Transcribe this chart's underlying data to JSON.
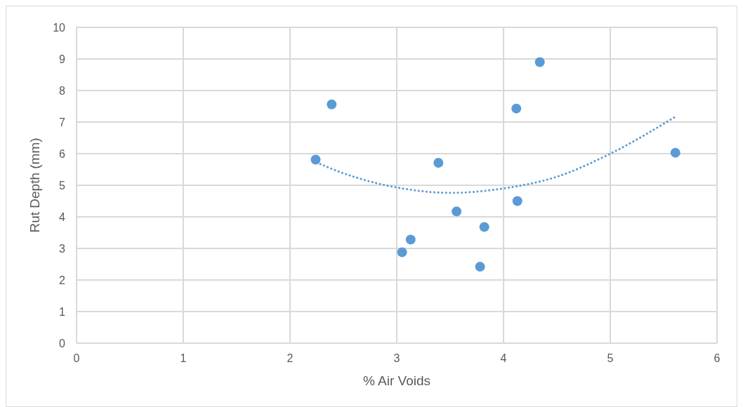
{
  "chart_data": {
    "type": "scatter",
    "xlabel": "% Air Voids",
    "ylabel": "Rut Depth (mm)",
    "xlim": [
      0,
      6
    ],
    "xticks": [
      0,
      1,
      2,
      3,
      4,
      5,
      6
    ],
    "ylim": [
      0,
      10
    ],
    "yticks": [
      0,
      1,
      2,
      3,
      4,
      5,
      6,
      7,
      8,
      9,
      10
    ],
    "grid": true,
    "series": [
      {
        "marker": "circle",
        "color": "#5b9bd5",
        "x": [
          2.24,
          2.39,
          3.39,
          3.56,
          3.82,
          3.13,
          3.05,
          3.78,
          4.13,
          4.12,
          4.34,
          5.61
        ],
        "values": [
          5.81,
          7.56,
          5.71,
          4.17,
          3.68,
          3.28,
          2.88,
          2.42,
          4.5,
          7.43,
          8.9,
          6.03
        ]
      },
      {
        "type": "line",
        "marker": "none",
        "color": "#5b9bd5",
        "line_style": "dotted",
        "x": [
          2.25,
          2.5,
          3,
          3.5,
          4,
          4.5,
          5,
          5.6
        ],
        "values": [
          5.72,
          5.38,
          4.93,
          4.76,
          4.9,
          5.27,
          6.0,
          7.15
        ]
      }
    ]
  }
}
